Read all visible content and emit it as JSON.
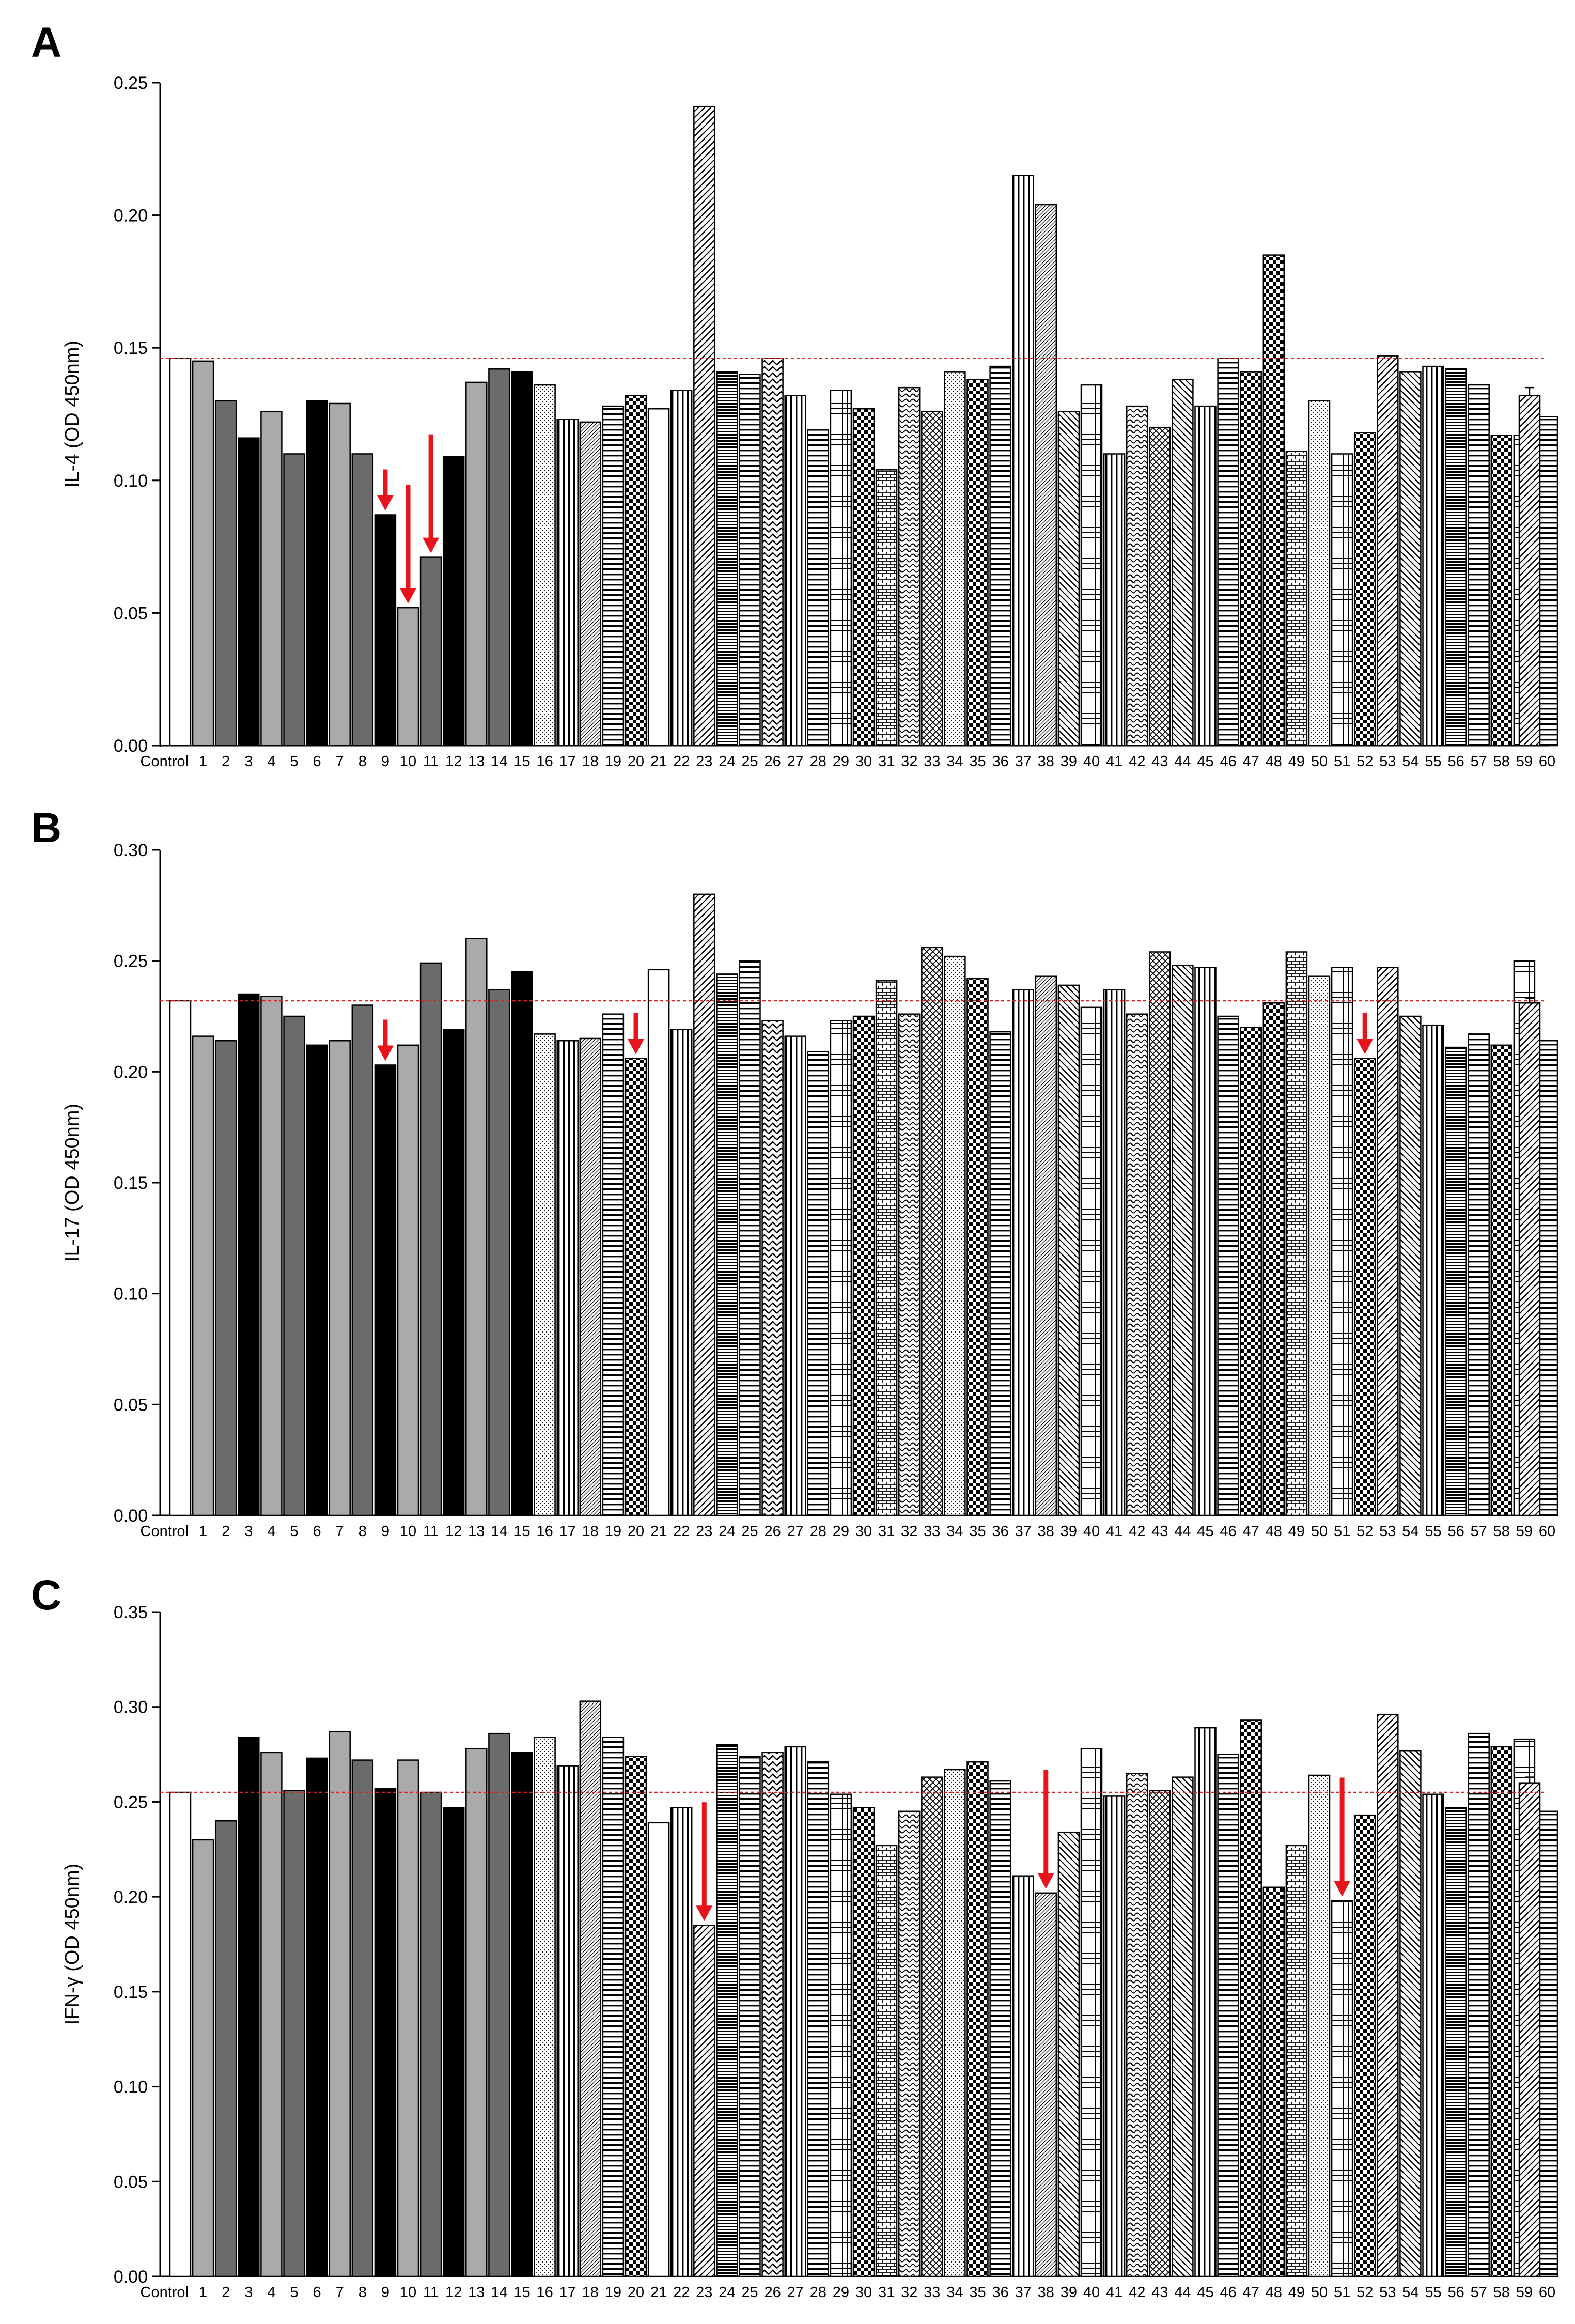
{
  "figure": {
    "panel_labels": [
      "A",
      "B",
      "C"
    ],
    "colors": {
      "background": "#ffffff",
      "axis": "#000000",
      "reference_line": "#e02020",
      "arrow": "#e8141c",
      "bar_outline": "#000000"
    }
  },
  "chart_data": [
    {
      "panel": "A",
      "type": "bar",
      "ylabel": "IL-4 (OD 450nm)",
      "xlabel": "",
      "ylim": [
        0,
        0.25
      ],
      "yticks": [
        "0.00",
        "0.05",
        "0.10",
        "0.15",
        "0.20",
        "0.25"
      ],
      "reference_line": 0.146,
      "categories": [
        "Control",
        "1",
        "2",
        "3",
        "4",
        "5",
        "6",
        "7",
        "8",
        "9",
        "10",
        "11",
        "12",
        "13",
        "14",
        "15",
        "16",
        "17",
        "18",
        "19",
        "20",
        "21",
        "22",
        "23",
        "24",
        "25",
        "26",
        "27",
        "28",
        "29",
        "30",
        "31",
        "32",
        "33",
        "34",
        "35",
        "36",
        "37",
        "38",
        "39",
        "40",
        "41",
        "42",
        "43",
        "44",
        "45",
        "46",
        "47",
        "48",
        "49",
        "50",
        "51",
        "52",
        "53",
        "54",
        "55",
        "56",
        "57",
        "58",
        "59",
        "60"
      ],
      "values": [
        0.146,
        0.145,
        0.13,
        0.116,
        0.126,
        0.11,
        0.13,
        0.129,
        0.11,
        0.087,
        0.052,
        0.071,
        0.109,
        0.137,
        0.142,
        0.141,
        0.136,
        0.123,
        0.122,
        0.128,
        0.132,
        0.127,
        0.134,
        0.241,
        0.141,
        0.14,
        0.146,
        0.132,
        0.119,
        0.134,
        0.127,
        0.104,
        0.135,
        0.126,
        0.141,
        0.138,
        0.143,
        0.215,
        0.204,
        0.126,
        0.136,
        0.11,
        0.128,
        0.12,
        0.138,
        0.128,
        0.146,
        0.141,
        0.185,
        0.111,
        0.13,
        0.11,
        0.118,
        0.147,
        0.141,
        0.143,
        0.142,
        0.136,
        0.117,
        0.117,
        0.124
      ],
      "extra_bar": {
        "value": 0.132,
        "error": 0.003
      },
      "arrows": [
        {
          "category": "9",
          "length": "short"
        },
        {
          "category": "10",
          "length": "long"
        },
        {
          "category": "11",
          "length": "long"
        }
      ]
    },
    {
      "panel": "B",
      "type": "bar",
      "ylabel": "IL-17 (OD 450nm)",
      "xlabel": "",
      "ylim": [
        0,
        0.3
      ],
      "yticks": [
        "0.00",
        "0.05",
        "0.10",
        "0.15",
        "0.20",
        "0.25",
        "0.30"
      ],
      "reference_line": 0.232,
      "categories": [
        "Control",
        "1",
        "2",
        "3",
        "4",
        "5",
        "6",
        "7",
        "8",
        "9",
        "10",
        "11",
        "12",
        "13",
        "14",
        "15",
        "16",
        "17",
        "18",
        "19",
        "20",
        "21",
        "22",
        "23",
        "24",
        "25",
        "26",
        "27",
        "28",
        "29",
        "30",
        "31",
        "32",
        "33",
        "34",
        "35",
        "36",
        "37",
        "38",
        "39",
        "40",
        "41",
        "42",
        "43",
        "44",
        "45",
        "46",
        "47",
        "48",
        "49",
        "50",
        "51",
        "52",
        "53",
        "54",
        "55",
        "56",
        "57",
        "58",
        "59",
        "60"
      ],
      "values": [
        0.232,
        0.216,
        0.214,
        0.235,
        0.234,
        0.225,
        0.212,
        0.214,
        0.23,
        0.203,
        0.212,
        0.249,
        0.219,
        0.26,
        0.237,
        0.245,
        0.217,
        0.214,
        0.215,
        0.226,
        0.206,
        0.246,
        0.219,
        0.28,
        0.244,
        0.25,
        0.223,
        0.216,
        0.209,
        0.223,
        0.225,
        0.241,
        0.226,
        0.256,
        0.252,
        0.242,
        0.218,
        0.237,
        0.243,
        0.239,
        0.229,
        0.237,
        0.226,
        0.254,
        0.248,
        0.247,
        0.225,
        0.22,
        0.231,
        0.254,
        0.243,
        0.247,
        0.206,
        0.247,
        0.225,
        0.221,
        0.211,
        0.217,
        0.212,
        0.25,
        0.214
      ],
      "extra_bar": {
        "value": 0.231,
        "error": 0.002
      },
      "arrows": [
        {
          "category": "9",
          "length": "short"
        },
        {
          "category": "20",
          "length": "short"
        },
        {
          "category": "52",
          "length": "short"
        }
      ]
    },
    {
      "panel": "C",
      "type": "bar",
      "ylabel": "IFN-γ (OD 450nm)",
      "xlabel": "",
      "ylim": [
        0,
        0.35
      ],
      "yticks": [
        "0.00",
        "0.05",
        "0.10",
        "0.15",
        "0.20",
        "0.25",
        "0.30",
        "0.35"
      ],
      "reference_line": 0.255,
      "categories": [
        "Control",
        "1",
        "2",
        "3",
        "4",
        "5",
        "6",
        "7",
        "8",
        "9",
        "10",
        "11",
        "12",
        "13",
        "14",
        "15",
        "16",
        "17",
        "18",
        "19",
        "20",
        "21",
        "22",
        "23",
        "24",
        "25",
        "26",
        "27",
        "28",
        "29",
        "30",
        "31",
        "32",
        "33",
        "34",
        "35",
        "36",
        "37",
        "38",
        "39",
        "40",
        "41",
        "42",
        "43",
        "44",
        "45",
        "46",
        "47",
        "48",
        "49",
        "50",
        "51",
        "52",
        "53",
        "54",
        "55",
        "56",
        "57",
        "58",
        "59",
        "60"
      ],
      "values": [
        0.255,
        0.23,
        0.24,
        0.284,
        0.276,
        0.256,
        0.273,
        0.287,
        0.272,
        0.257,
        0.272,
        0.255,
        0.247,
        0.278,
        0.286,
        0.276,
        0.284,
        0.269,
        0.303,
        0.284,
        0.274,
        0.239,
        0.247,
        0.185,
        0.28,
        0.274,
        0.276,
        0.279,
        0.271,
        0.254,
        0.247,
        0.227,
        0.245,
        0.263,
        0.267,
        0.271,
        0.261,
        0.211,
        0.202,
        0.234,
        0.278,
        0.253,
        0.265,
        0.256,
        0.263,
        0.289,
        0.275,
        0.293,
        0.205,
        0.227,
        0.264,
        0.198,
        0.243,
        0.296,
        0.277,
        0.254,
        0.247,
        0.286,
        0.279,
        0.283,
        0.245
      ],
      "extra_bar": {
        "value": 0.26,
        "error": 0.003
      },
      "arrows": [
        {
          "category": "23",
          "length": "long"
        },
        {
          "category": "38",
          "length": "long"
        },
        {
          "category": "51",
          "length": "long"
        }
      ]
    }
  ]
}
